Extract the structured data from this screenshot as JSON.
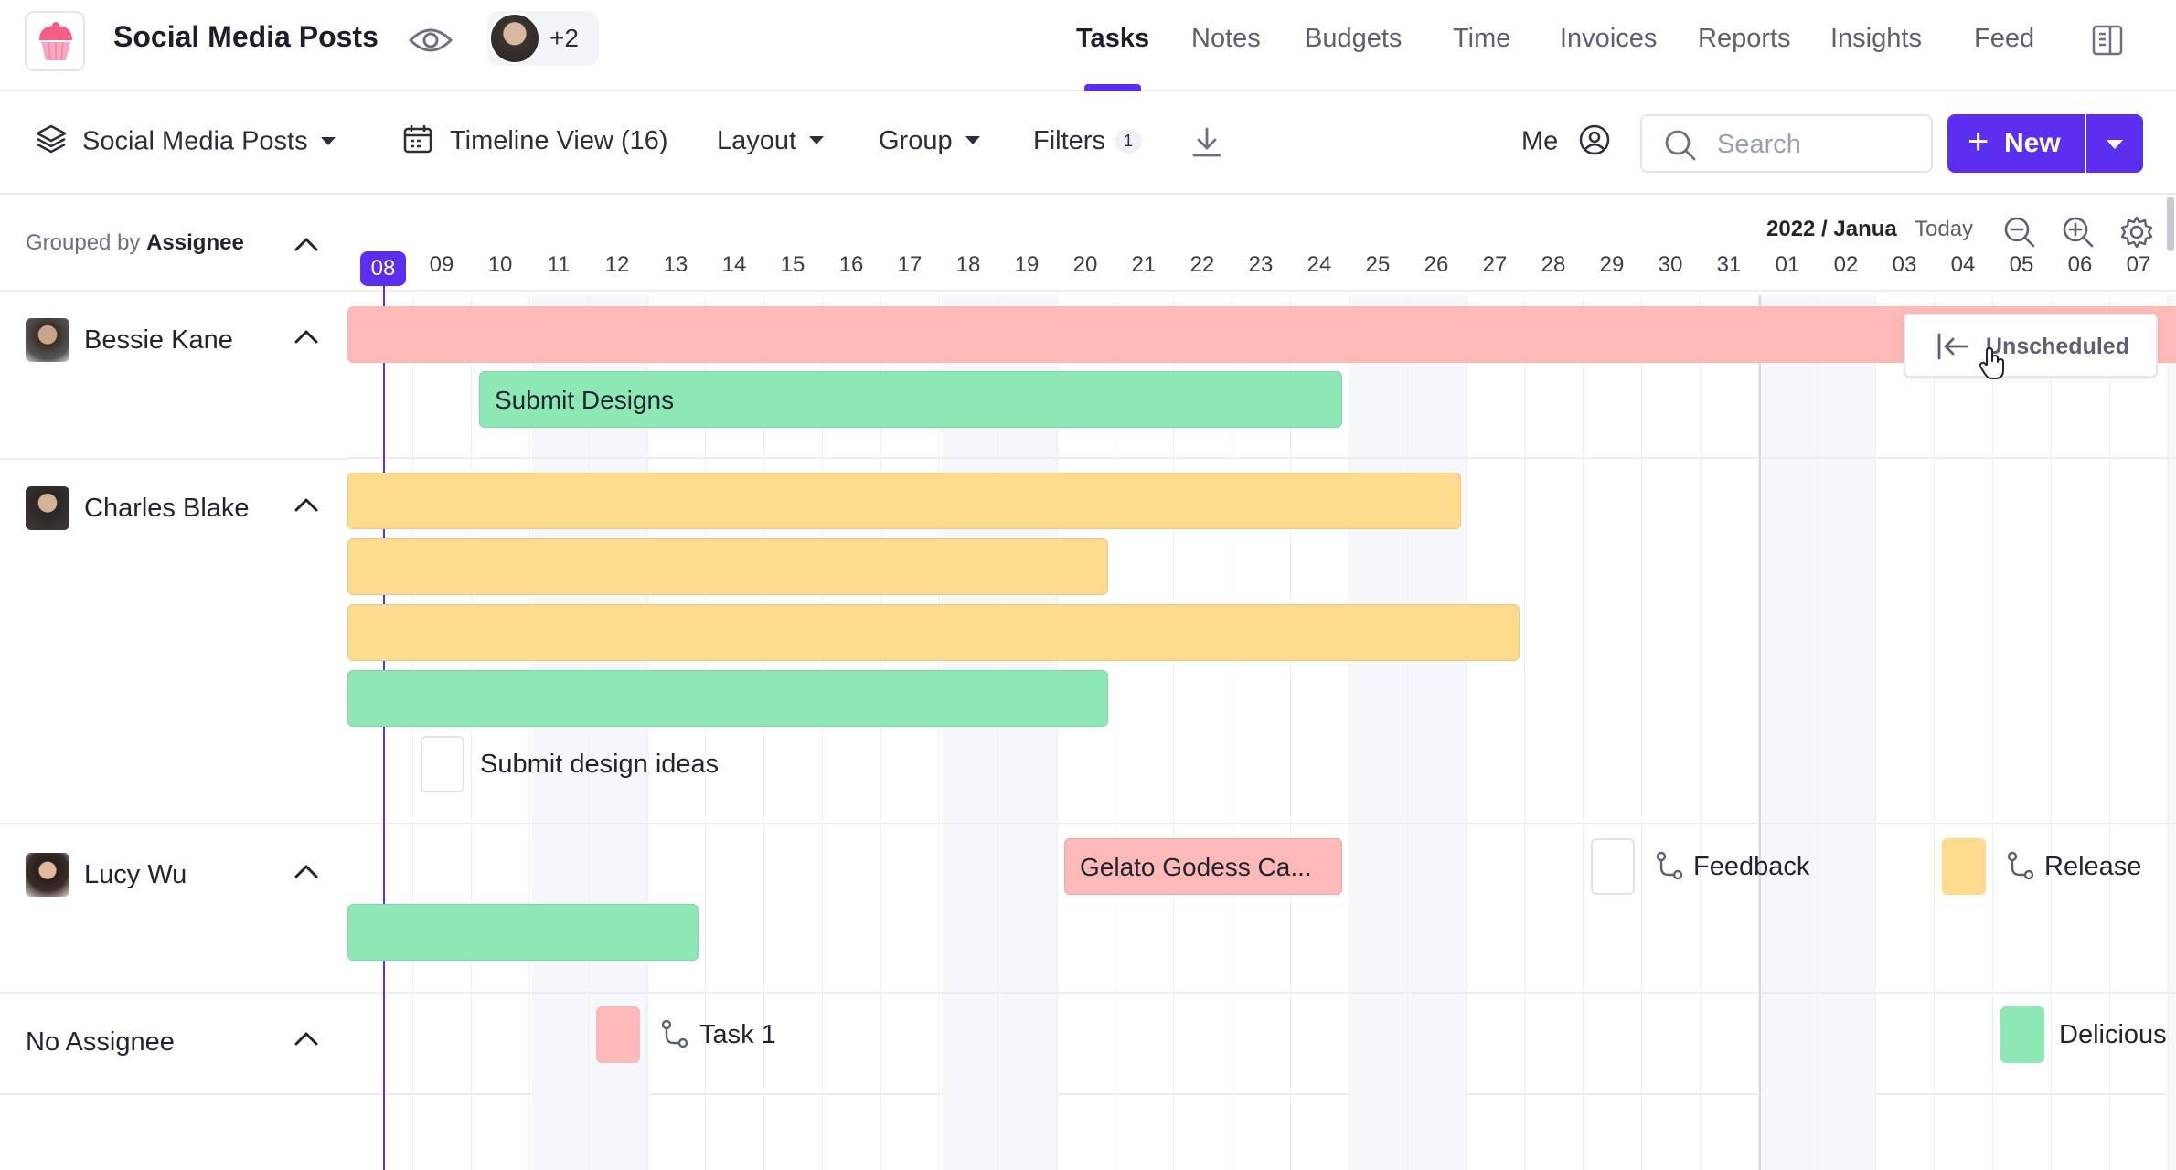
{
  "app": {
    "title": "Social Media Posts",
    "avatar_more": "+2"
  },
  "nav": {
    "tabs": [
      {
        "label": "Tasks",
        "active": true
      },
      {
        "label": "Notes"
      },
      {
        "label": "Budgets"
      },
      {
        "label": "Time"
      },
      {
        "label": "Invoices"
      },
      {
        "label": "Reports"
      },
      {
        "label": "Insights"
      },
      {
        "label": "Feed"
      }
    ]
  },
  "toolbar": {
    "project": "Social Media Posts",
    "view": "Timeline View (16)",
    "layout": "Layout",
    "group": "Group",
    "filters": "Filters",
    "filters_count": "1",
    "me": "Me",
    "search_placeholder": "Search",
    "new_label": "New"
  },
  "left": {
    "grouped_by_prefix": "Grouped by",
    "grouped_by_value": "Assignee",
    "groups": [
      {
        "name": "Bessie Kane"
      },
      {
        "name": "Charles Blake"
      },
      {
        "name": "Lucy Wu"
      },
      {
        "name": "No Assignee"
      }
    ]
  },
  "timeline": {
    "date_label": "2022 / Janua",
    "today_label": "Today",
    "days": [
      "08",
      "09",
      "10",
      "11",
      "12",
      "13",
      "14",
      "15",
      "16",
      "17",
      "18",
      "19",
      "20",
      "21",
      "22",
      "23",
      "24",
      "25",
      "26",
      "27",
      "28",
      "29",
      "30",
      "31",
      "01",
      "02",
      "03",
      "04",
      "05",
      "06",
      "07"
    ],
    "unscheduled_label": "Unscheduled",
    "tasks": {
      "submit_designs": "Submit Designs",
      "submit_design_ideas": "Submit design ideas",
      "gelato": "Gelato Godess Ca...",
      "feedback": "Feedback",
      "release": "Release",
      "task1": "Task 1",
      "delicious": "Delicious"
    }
  },
  "colors": {
    "accent": "#5b2ef0",
    "red_bar": "#fdb8b8",
    "green_bar": "#8ee8b6",
    "yellow_bar": "#fddb8e"
  }
}
